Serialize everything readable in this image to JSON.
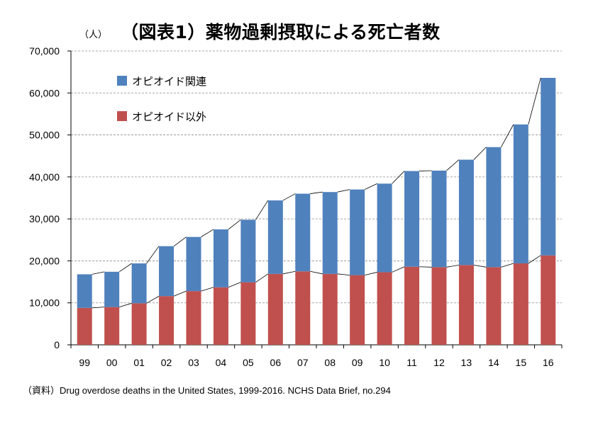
{
  "chart_data": {
    "type": "bar",
    "stacked": true,
    "title": "（図表1）薬物過剰摂取による死亡者数",
    "ylabel": "（人）",
    "xlabel": "",
    "ylim": [
      0,
      70000
    ],
    "yticks": [
      "0",
      "10,000",
      "20,000",
      "30,000",
      "40,000",
      "50,000",
      "60,000",
      "70,000"
    ],
    "ytick_values": [
      0,
      10000,
      20000,
      30000,
      40000,
      50000,
      60000,
      70000
    ],
    "categories": [
      "99",
      "00",
      "01",
      "02",
      "03",
      "04",
      "05",
      "06",
      "07",
      "08",
      "09",
      "10",
      "11",
      "12",
      "13",
      "14",
      "15",
      "16"
    ],
    "series": [
      {
        "name": "オピオイド以外",
        "color": "#c0504d",
        "values": [
          8800,
          9000,
          9900,
          11600,
          12800,
          13700,
          14900,
          16900,
          17500,
          16900,
          16600,
          17300,
          18600,
          18500,
          19000,
          18500,
          19400,
          21300
        ]
      },
      {
        "name": "オピオイド関連",
        "color": "#4f81bd",
        "values": [
          8000,
          8400,
          9500,
          11900,
          12900,
          13800,
          14900,
          17500,
          18500,
          19500,
          20400,
          21100,
          22800,
          23000,
          25100,
          28600,
          33100,
          42300
        ]
      }
    ],
    "legend_position": "top-left",
    "grid": true,
    "grid_style": "dashed",
    "connector_lines": true
  },
  "source": "（資料）Drug overdose deaths in the United States, 1999-2016. NCHS Data Brief, no.294"
}
